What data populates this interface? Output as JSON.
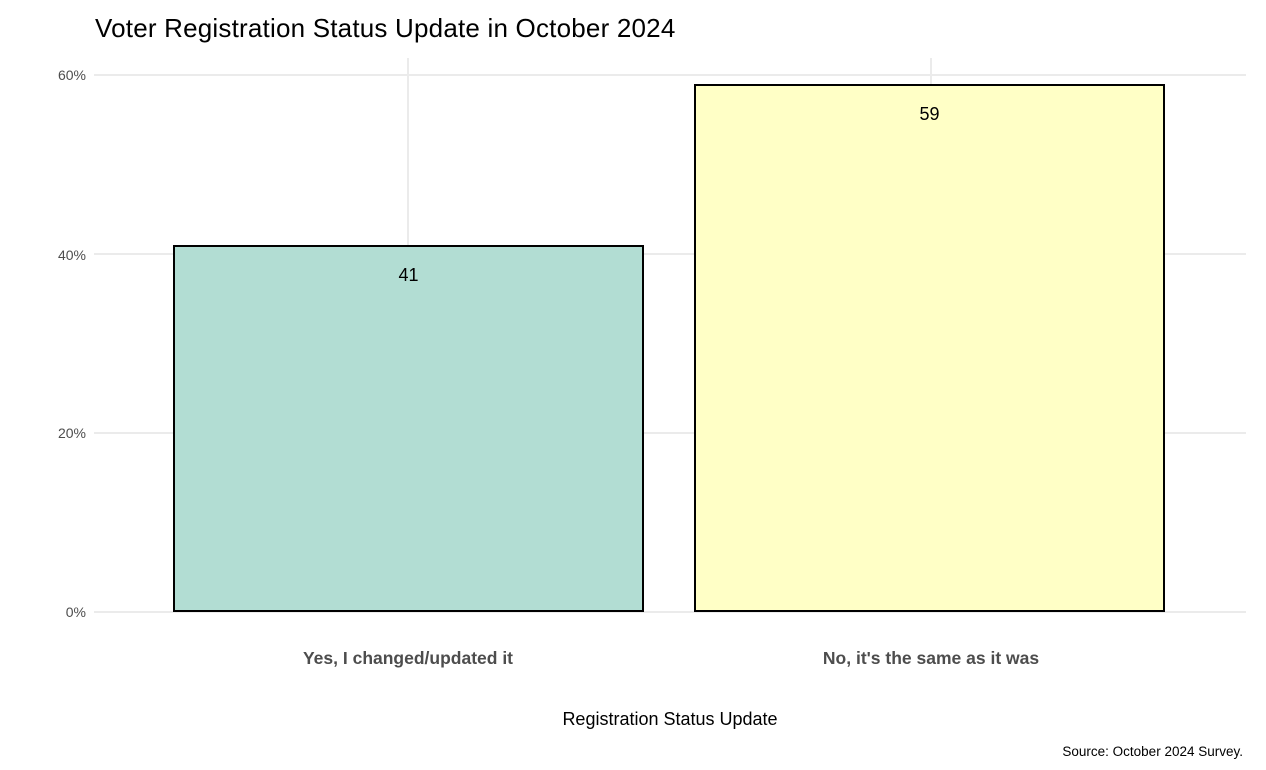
{
  "title": "Voter Registration Status Update in October 2024",
  "caption": "Source: October 2024 Survey.",
  "chart_data": {
    "type": "bar",
    "title": "Voter Registration Status Update in October 2024",
    "categories": [
      "Yes, I changed/updated it",
      "No, it's the same as it was"
    ],
    "values": [
      41,
      59
    ],
    "bar_labels": [
      "41",
      "59"
    ],
    "xlabel": "Registration Status Update",
    "ylabel": "",
    "ylim": [
      0,
      60
    ],
    "yticks": [
      0,
      20,
      40,
      60
    ],
    "ytick_labels": [
      "0%",
      "20%",
      "40%",
      "60%"
    ],
    "grid": true,
    "legend": false,
    "bar_colors": [
      "#B2DDD3",
      "#FFFFC6"
    ],
    "bar_border_color": "#000000",
    "grid_color": "#EBEBEB",
    "axis_text_color": "#4D4D4D",
    "caption": "Source: October 2024 Survey."
  }
}
